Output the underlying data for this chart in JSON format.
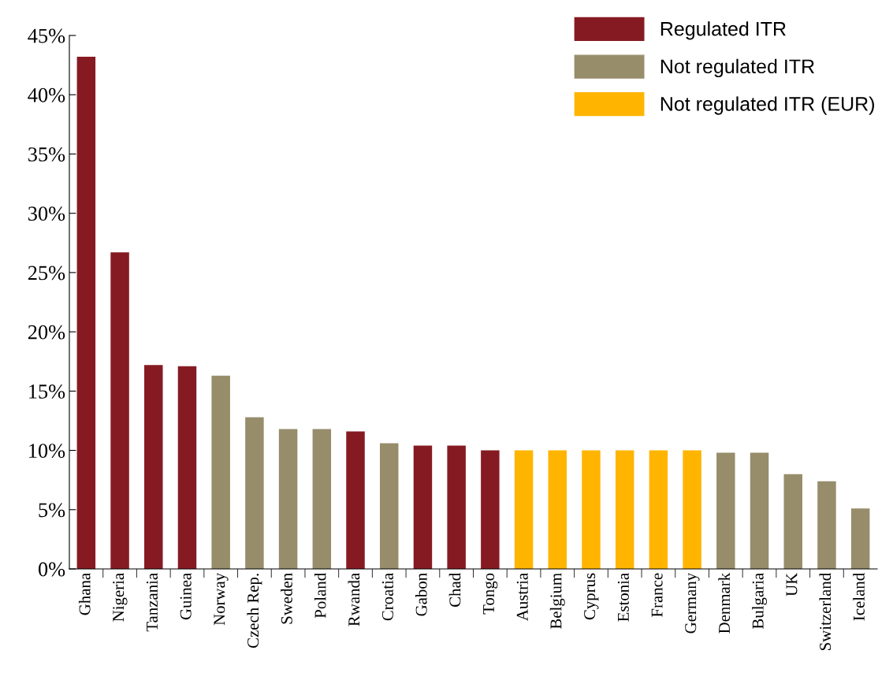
{
  "chart_data": {
    "type": "bar",
    "categories": [
      "Ghana",
      "Nigeria",
      "Tanzania",
      "Guinea",
      "Norway",
      "Czech Rep.",
      "Sweden",
      "Poland",
      "Rwanda",
      "Croatia",
      "Gabon",
      "Chad",
      "Tongo",
      "Austria",
      "Belgium",
      "Cyprus",
      "Estonia",
      "France",
      "Germany",
      "Denmark",
      "Bulgaria",
      "UK",
      "Switzerland",
      "Iceland"
    ],
    "series": [
      {
        "name": "Regulated ITR",
        "color": "#861a22",
        "values": [
          43.2,
          26.7,
          17.2,
          17.1,
          null,
          null,
          null,
          null,
          11.6,
          null,
          10.4,
          10.4,
          10.0,
          null,
          null,
          null,
          null,
          null,
          null,
          null,
          null,
          null,
          null,
          null
        ]
      },
      {
        "name": "Not regulated ITR",
        "color": "#978d6b",
        "values": [
          null,
          null,
          null,
          null,
          16.3,
          12.8,
          11.8,
          11.8,
          null,
          10.6,
          null,
          null,
          null,
          null,
          null,
          null,
          null,
          null,
          null,
          9.8,
          9.8,
          8.0,
          7.4,
          5.1
        ]
      },
      {
        "name": "Not regulated ITR (EUR)",
        "color": "#ffb500",
        "values": [
          null,
          null,
          null,
          null,
          null,
          null,
          null,
          null,
          null,
          null,
          null,
          null,
          null,
          10.0,
          10.0,
          10.0,
          10.0,
          10.0,
          10.0,
          null,
          null,
          null,
          null,
          null
        ]
      }
    ],
    "ylim": [
      0,
      45
    ],
    "yticks": [
      {
        "value": 0,
        "label": "0%"
      },
      {
        "value": 5,
        "label": "5%"
      },
      {
        "value": 10,
        "label": "10%"
      },
      {
        "value": 15,
        "label": "15%"
      },
      {
        "value": 20,
        "label": "20%"
      },
      {
        "value": 25,
        "label": "25%"
      },
      {
        "value": 30,
        "label": "30%"
      },
      {
        "value": 35,
        "label": "35%"
      },
      {
        "value": 40,
        "label": "40%"
      },
      {
        "value": 45,
        "label": "45%"
      }
    ],
    "grid": false,
    "legend": "top right"
  }
}
